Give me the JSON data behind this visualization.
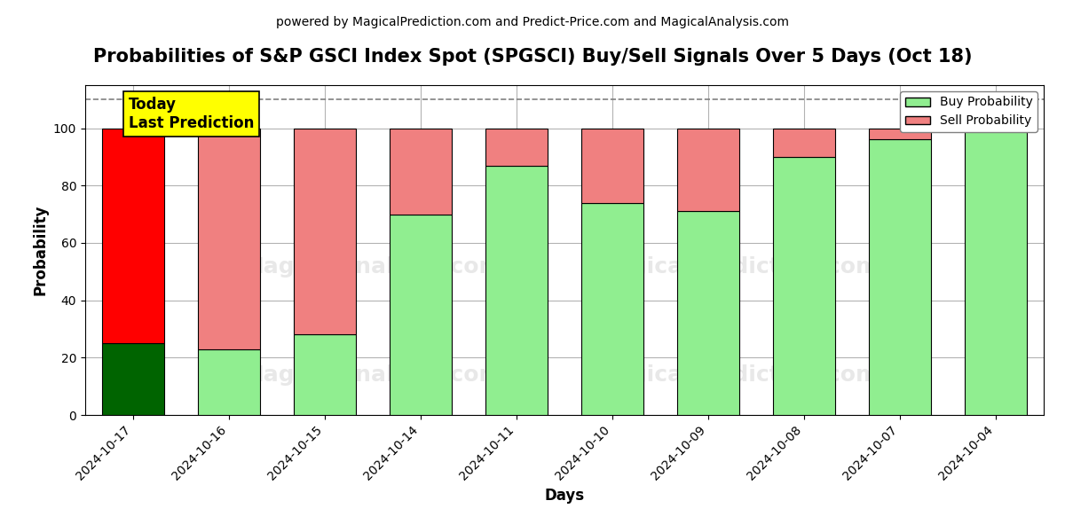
{
  "title": "Probabilities of S&P GSCI Index Spot (SPGSCI) Buy/Sell Signals Over 5 Days (Oct 18)",
  "subtitle": "powered by MagicalPrediction.com and Predict-Price.com and MagicalAnalysis.com",
  "xlabel": "Days",
  "ylabel": "Probability",
  "dates": [
    "2024-10-17",
    "2024-10-16",
    "2024-10-15",
    "2024-10-14",
    "2024-10-11",
    "2024-10-10",
    "2024-10-09",
    "2024-10-08",
    "2024-10-07",
    "2024-10-04"
  ],
  "buy_values": [
    25,
    23,
    28,
    70,
    87,
    74,
    71,
    90,
    96,
    100
  ],
  "sell_values": [
    75,
    77,
    72,
    30,
    13,
    26,
    29,
    10,
    4,
    0
  ],
  "buy_color_first": "#006400",
  "sell_color_first": "#FF0000",
  "buy_color_rest": "#90EE90",
  "sell_color_rest": "#F08080",
  "today_box_color": "#FFFF00",
  "dashed_line_y": 110,
  "ylim": [
    0,
    115
  ],
  "yticks": [
    0,
    20,
    40,
    60,
    80,
    100
  ],
  "background_color": "#ffffff",
  "legend_buy_label": "Buy Probability",
  "legend_sell_label": "Sell Probability",
  "today_label_line1": "Today",
  "today_label_line2": "Last Prediction",
  "title_fontsize": 15,
  "subtitle_fontsize": 10,
  "axis_label_fontsize": 12,
  "tick_fontsize": 10,
  "bar_width": 0.65
}
